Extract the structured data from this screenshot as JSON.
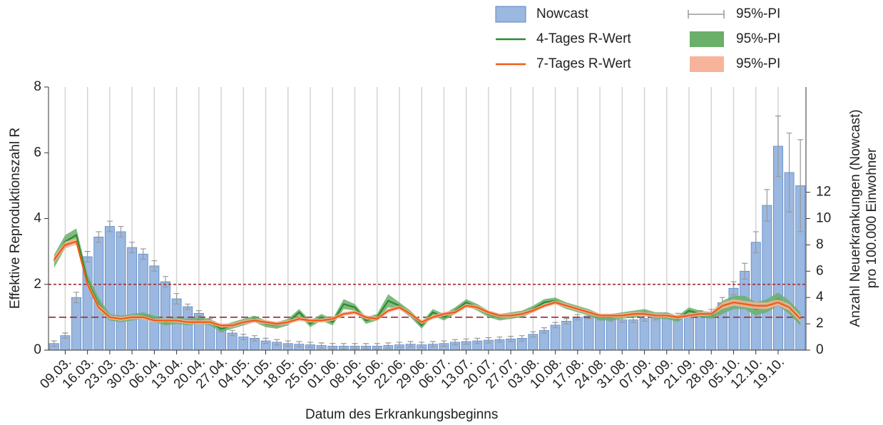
{
  "chart_data": {
    "type": "combo",
    "y_label": "Effektive Reproduktionszahl R",
    "y2_label": [
      "Anzahl Neuerkrankungen (Nowcast)",
      "pro 100.000 Einwohner"
    ],
    "x_label": "Datum des Erkrankungsbeginns",
    "categories": [
      null,
      "09.03.",
      null,
      "16.03.",
      null,
      "23.03.",
      null,
      "30.03.",
      null,
      "06.04.",
      null,
      "13.04.",
      null,
      "20.04.",
      null,
      "27.04.",
      null,
      "04.05.",
      null,
      "11.05.",
      null,
      "18.05.",
      null,
      "25.05.",
      null,
      "01.06.",
      null,
      "08.06.",
      null,
      "15.06.",
      null,
      "22.06.",
      null,
      "29.06.",
      null,
      "06.07.",
      null,
      "13.07.",
      null,
      "20.07.",
      null,
      "27.07.",
      null,
      "03.08.",
      null,
      "10.08.",
      null,
      "17.08.",
      null,
      "24.08.",
      null,
      "31.08.",
      null,
      "07.09.",
      null,
      "14.09.",
      null,
      "21.09.",
      null,
      "28.09.",
      null,
      "05.10.",
      null,
      "12.10.",
      null,
      "19.10.",
      null,
      null
    ],
    "ylim": [
      0,
      8
    ],
    "yticks": [
      0,
      2,
      4,
      6,
      8
    ],
    "y2lim": [
      0,
      20
    ],
    "y2ticks": [
      0,
      2,
      4,
      6,
      8,
      10,
      12
    ],
    "grid": "x",
    "hlines": [
      1,
      2
    ],
    "hline_color": "#a3343a",
    "series": [
      {
        "name": "Nowcast",
        "kind": "bar",
        "axis": "y2",
        "color": "#9ab8e0",
        "edge_color": "#5a86c6",
        "interval_name": "95%-PI",
        "interval_color": "#999999",
        "values": [
          0.5,
          1.1,
          4.0,
          7.1,
          8.6,
          9.4,
          9.0,
          7.8,
          7.3,
          6.4,
          5.2,
          3.9,
          3.3,
          2.8,
          2.2,
          1.6,
          1.3,
          1.0,
          0.9,
          0.7,
          0.6,
          0.5,
          0.45,
          0.4,
          0.35,
          0.3,
          0.3,
          0.3,
          0.3,
          0.3,
          0.35,
          0.4,
          0.45,
          0.4,
          0.45,
          0.5,
          0.6,
          0.65,
          0.7,
          0.75,
          0.8,
          0.85,
          0.9,
          1.2,
          1.5,
          1.9,
          2.2,
          2.5,
          2.6,
          2.5,
          2.4,
          2.3,
          2.3,
          2.4,
          2.5,
          2.6,
          2.6,
          2.7,
          2.8,
          2.9,
          3.6,
          4.7,
          6.0,
          8.2,
          11.0,
          15.5,
          13.5,
          12.5
        ],
        "errors": [
          0.2,
          0.2,
          0.4,
          0.4,
          0.4,
          0.4,
          0.4,
          0.4,
          0.4,
          0.4,
          0.4,
          0.4,
          0.2,
          0.2,
          0.2,
          0.2,
          0.2,
          0.2,
          0.2,
          0.2,
          0.2,
          0.2,
          0.2,
          0.2,
          0.2,
          0.2,
          0.2,
          0.2,
          0.2,
          0.2,
          0.2,
          0.2,
          0.2,
          0.2,
          0.2,
          0.2,
          0.2,
          0.2,
          0.2,
          0.2,
          0.2,
          0.2,
          0.2,
          0.2,
          0.2,
          0.2,
          0.2,
          0.2,
          0.2,
          0.2,
          0.2,
          0.2,
          0.2,
          0.2,
          0.2,
          0.2,
          0.2,
          0.2,
          0.2,
          0.2,
          0.4,
          0.5,
          0.6,
          0.8,
          1.2,
          2.3,
          3.0,
          3.5
        ]
      },
      {
        "name": "4-Tages R-Wert",
        "kind": "line",
        "color": "#2e8b2e",
        "interval_name": "95%-PI",
        "interval_color": "#6aaf6a",
        "values": [
          2.7,
          3.3,
          3.5,
          2.1,
          1.4,
          1.0,
          0.95,
          1.0,
          1.05,
          0.95,
          0.85,
          0.9,
          0.85,
          0.9,
          0.85,
          0.65,
          0.75,
          0.85,
          0.95,
          0.8,
          0.75,
          0.85,
          1.15,
          0.8,
          1.0,
          0.85,
          1.4,
          1.3,
          0.9,
          1.0,
          1.5,
          1.35,
          1.1,
          0.75,
          1.15,
          1.0,
          1.2,
          1.45,
          1.3,
          1.1,
          1.0,
          1.05,
          1.1,
          1.25,
          1.45,
          1.5,
          1.35,
          1.25,
          1.15,
          1.0,
          1.0,
          1.05,
          1.1,
          1.15,
          1.05,
          1.05,
          0.95,
          1.2,
          1.1,
          1.05,
          1.3,
          1.45,
          1.45,
          1.25,
          1.35,
          1.55,
          1.3,
          0.95
        ],
        "errors": [
          0.2,
          0.2,
          0.2,
          0.2,
          0.2,
          0.1,
          0.1,
          0.1,
          0.1,
          0.1,
          0.1,
          0.1,
          0.1,
          0.1,
          0.1,
          0.1,
          0.1,
          0.1,
          0.1,
          0.1,
          0.1,
          0.1,
          0.1,
          0.1,
          0.1,
          0.1,
          0.15,
          0.1,
          0.1,
          0.1,
          0.2,
          0.1,
          0.1,
          0.1,
          0.1,
          0.1,
          0.1,
          0.1,
          0.1,
          0.1,
          0.1,
          0.1,
          0.1,
          0.1,
          0.1,
          0.1,
          0.1,
          0.1,
          0.1,
          0.1,
          0.1,
          0.1,
          0.1,
          0.1,
          0.1,
          0.1,
          0.1,
          0.1,
          0.1,
          0.1,
          0.2,
          0.2,
          0.2,
          0.2,
          0.2,
          0.2,
          0.2,
          0.2
        ]
      },
      {
        "name": "7-Tages R-Wert",
        "kind": "line",
        "color": "#f05a14",
        "interval_name": "95%-PI",
        "interval_color": "#f8b49a",
        "values": [
          2.75,
          3.2,
          3.3,
          2.0,
          1.3,
          1.0,
          0.95,
          1.0,
          1.0,
          0.9,
          0.9,
          0.9,
          0.85,
          0.85,
          0.85,
          0.75,
          0.75,
          0.85,
          0.9,
          0.85,
          0.8,
          0.85,
          0.95,
          0.9,
          0.9,
          0.95,
          1.1,
          1.15,
          1.0,
          0.95,
          1.2,
          1.3,
          1.1,
          0.85,
          1.0,
          1.1,
          1.15,
          1.35,
          1.3,
          1.15,
          1.05,
          1.05,
          1.1,
          1.2,
          1.35,
          1.45,
          1.35,
          1.25,
          1.15,
          1.05,
          1.05,
          1.05,
          1.1,
          1.1,
          1.05,
          1.05,
          1.0,
          1.05,
          1.1,
          1.1,
          1.35,
          1.45,
          1.4,
          1.35,
          1.35,
          1.45,
          1.3,
          0.95
        ],
        "errors": [
          0.1,
          0.1,
          0.1,
          0.1,
          0.1,
          0.06,
          0.06,
          0.06,
          0.06,
          0.06,
          0.06,
          0.06,
          0.06,
          0.06,
          0.06,
          0.06,
          0.06,
          0.06,
          0.06,
          0.06,
          0.06,
          0.06,
          0.06,
          0.06,
          0.06,
          0.06,
          0.06,
          0.06,
          0.06,
          0.06,
          0.06,
          0.06,
          0.06,
          0.06,
          0.06,
          0.06,
          0.06,
          0.06,
          0.06,
          0.06,
          0.06,
          0.06,
          0.06,
          0.06,
          0.06,
          0.06,
          0.06,
          0.06,
          0.06,
          0.06,
          0.06,
          0.06,
          0.06,
          0.06,
          0.06,
          0.06,
          0.06,
          0.06,
          0.06,
          0.06,
          0.1,
          0.1,
          0.1,
          0.1,
          0.1,
          0.1,
          0.1,
          0.1
        ]
      }
    ]
  }
}
